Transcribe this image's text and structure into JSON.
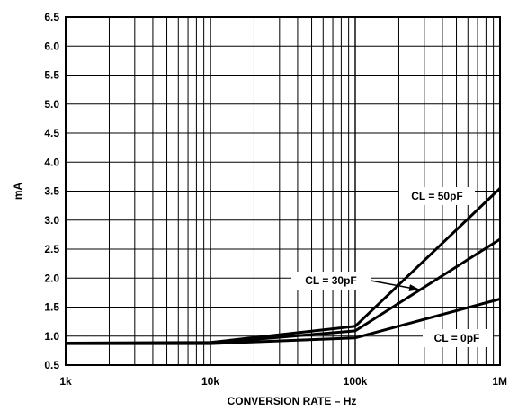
{
  "chart_data": {
    "type": "line",
    "title": "",
    "xlabel": "CONVERSION RATE – Hz",
    "ylabel": "mA",
    "x_scale": "log",
    "xlim": [
      1000,
      1000000
    ],
    "ylim": [
      0.5,
      6.5
    ],
    "x_ticks": [
      {
        "value": 1000,
        "label": "1k"
      },
      {
        "value": 10000,
        "label": "10k"
      },
      {
        "value": 100000,
        "label": "100k"
      },
      {
        "value": 1000000,
        "label": "1M"
      }
    ],
    "y_ticks": [
      {
        "value": 0.5,
        "label": "0.5"
      },
      {
        "value": 1.0,
        "label": "1.0"
      },
      {
        "value": 1.5,
        "label": "1.5"
      },
      {
        "value": 2.0,
        "label": "2.0"
      },
      {
        "value": 2.5,
        "label": "2.5"
      },
      {
        "value": 3.0,
        "label": "3.0"
      },
      {
        "value": 3.5,
        "label": "3.5"
      },
      {
        "value": 4.0,
        "label": "4.0"
      },
      {
        "value": 4.5,
        "label": "4.5"
      },
      {
        "value": 5.0,
        "label": "5.0"
      },
      {
        "value": 5.5,
        "label": "5.5"
      },
      {
        "value": 6.0,
        "label": "6.0"
      },
      {
        "value": 6.5,
        "label": "6.5"
      }
    ],
    "grid": true,
    "series": [
      {
        "name": "CL = 50pF",
        "x": [
          1000,
          10000,
          100000,
          1000000
        ],
        "y": [
          0.88,
          0.89,
          1.17,
          3.55
        ]
      },
      {
        "name": "CL = 30pF",
        "x": [
          1000,
          10000,
          100000,
          1000000
        ],
        "y": [
          0.88,
          0.88,
          1.09,
          2.67
        ]
      },
      {
        "name": "CL = 0pF",
        "x": [
          1000,
          10000,
          100000,
          1000000
        ],
        "y": [
          0.87,
          0.87,
          0.97,
          1.64
        ]
      }
    ],
    "annotations": [
      {
        "text": "CL = 50pF",
        "series": "CL = 50pF"
      },
      {
        "text": "CL = 30pF",
        "series": "CL = 30pF"
      },
      {
        "text": "CL = 0pF",
        "series": "CL = 0pF"
      }
    ]
  }
}
